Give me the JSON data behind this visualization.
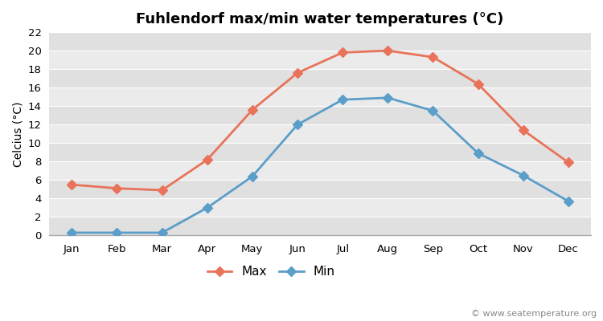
{
  "title": "Fuhlendorf max/min water temperatures (°C)",
  "ylabel": "Celcius (°C)",
  "months": [
    "Jan",
    "Feb",
    "Mar",
    "Apr",
    "May",
    "Jun",
    "Jul",
    "Aug",
    "Sep",
    "Oct",
    "Nov",
    "Dec"
  ],
  "max_values": [
    5.5,
    5.1,
    4.9,
    8.2,
    13.6,
    17.6,
    19.8,
    20.0,
    19.3,
    16.4,
    11.4,
    7.9
  ],
  "min_values": [
    0.3,
    0.3,
    0.3,
    3.0,
    6.4,
    12.0,
    14.7,
    14.9,
    13.5,
    8.9,
    6.5,
    3.7
  ],
  "max_color": "#e8735a",
  "min_color": "#5b9ec9",
  "ylim": [
    0,
    22
  ],
  "yticks": [
    0,
    2,
    4,
    6,
    8,
    10,
    12,
    14,
    16,
    18,
    20,
    22
  ],
  "fig_bg_color": "#ffffff",
  "plot_bg_color": "#ebebeb",
  "band_colors": [
    "#e0e0e0",
    "#ebebeb"
  ],
  "grid_color": "#ffffff",
  "marker_style": "D",
  "marker_size": 6,
  "line_width": 2.0,
  "watermark": "© www.seatemperature.org",
  "title_fontsize": 13,
  "label_fontsize": 10,
  "tick_fontsize": 9.5
}
